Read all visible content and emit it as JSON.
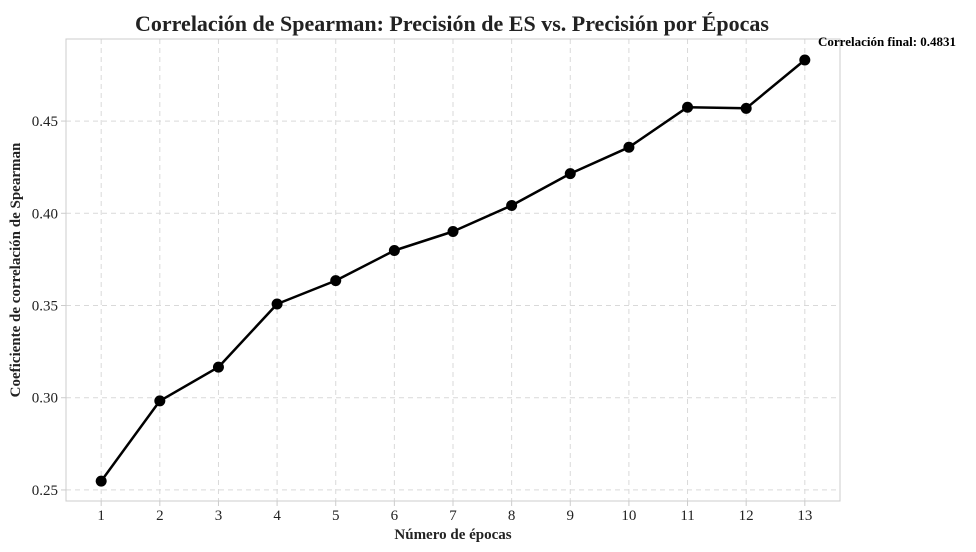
{
  "chart_data": {
    "type": "line",
    "title": "Correlación de Spearman: Precisión de ES vs. Precisión por Épocas",
    "xlabel": "Número de épocas",
    "ylabel": "Coeficiente de correlación de Spearman",
    "x": [
      1,
      2,
      3,
      4,
      5,
      6,
      7,
      8,
      9,
      10,
      11,
      12,
      13
    ],
    "series": [
      {
        "values": [
          0.2548,
          0.2983,
          0.3166,
          0.3508,
          0.3635,
          0.3798,
          0.3901,
          0.4042,
          0.4215,
          0.4358,
          0.4575,
          0.4569,
          0.4831
        ]
      }
    ],
    "xlim": [
      0.4,
      13.6
    ],
    "ylim": [
      0.244,
      0.4945
    ],
    "xticks": [
      1,
      2,
      3,
      4,
      5,
      6,
      7,
      8,
      9,
      10,
      11,
      12,
      13
    ],
    "yticks": [
      0.25,
      0.3,
      0.35,
      0.4,
      0.45
    ],
    "ytick_labels": [
      "0.25",
      "0.30",
      "0.35",
      "0.40",
      "0.45"
    ],
    "grid": true,
    "line_color": "#000000",
    "annotation": "Correlación final: 0.4831"
  }
}
